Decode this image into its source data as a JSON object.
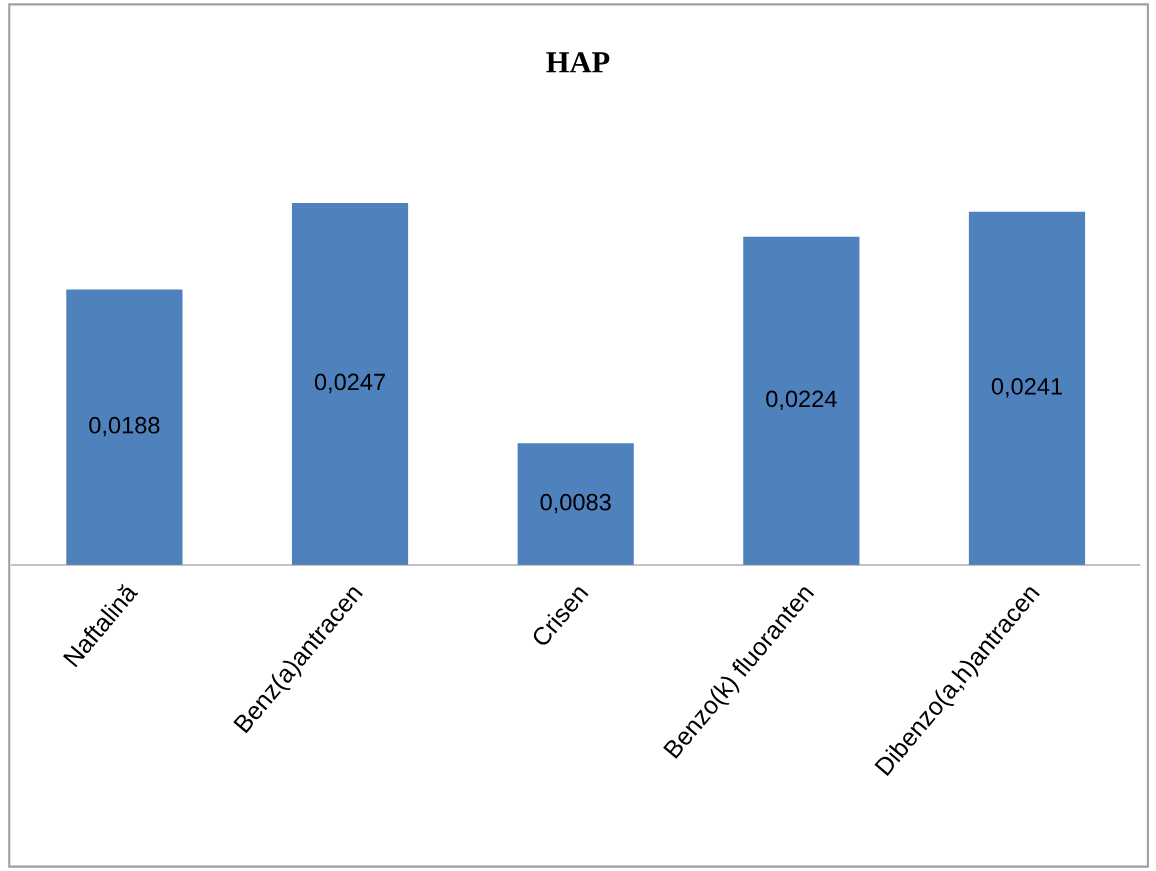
{
  "chart_data": {
    "type": "bar",
    "title": "HAP",
    "categories": [
      "Naftalină",
      "Benz(a)antracen",
      "Crisen",
      "Benzo(k) fluoranten",
      "Dibenzo(a,h)antracen"
    ],
    "values": [
      0.0188,
      0.0247,
      0.0083,
      0.0224,
      0.0241
    ],
    "value_labels": [
      "0,0188",
      "0,0247",
      "0,0083",
      "0,0224",
      "0,0241"
    ],
    "color": "#4f81bd",
    "tick_labels": "x",
    "grid": false,
    "legend": false
  }
}
